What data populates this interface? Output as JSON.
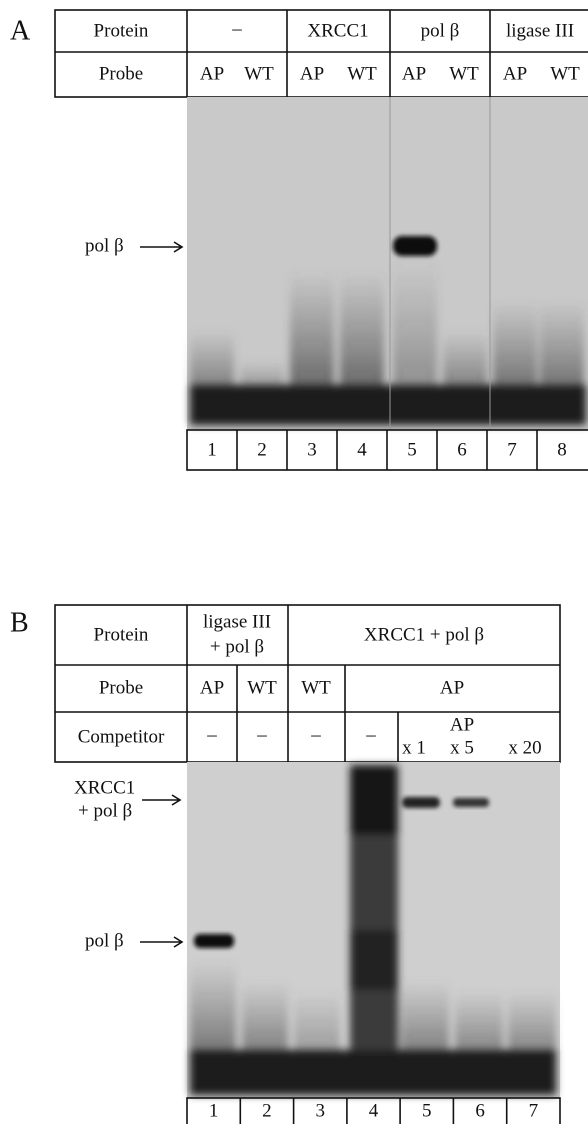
{
  "panel_a": {
    "label": "A",
    "protein_row": [
      "Protein",
      "–",
      "XRCC1",
      "pol β",
      "ligase III"
    ],
    "probe_row": [
      "Probe",
      "AP",
      "WT",
      "AP",
      "WT",
      "AP",
      "WT",
      "AP",
      "WT"
    ],
    "band_label": "pol β",
    "lanes": [
      "1",
      "2",
      "3",
      "4",
      "5",
      "6",
      "7",
      "8"
    ]
  },
  "panel_b": {
    "label": "B",
    "protein_row": [
      "Protein",
      [
        "ligase III",
        "+ pol β"
      ],
      "XRCC1 + pol β"
    ],
    "probe_row": [
      "Probe",
      "AP",
      "WT",
      "WT",
      "AP"
    ],
    "competitor_row": [
      "Competitor",
      "–",
      "–",
      "–",
      "–",
      "x 1",
      "AP",
      "x 5",
      "x 20"
    ],
    "band_labels": [
      [
        "XRCC1",
        "+ pol β"
      ],
      "pol β"
    ],
    "lanes": [
      "1",
      "2",
      "3",
      "4",
      "5",
      "6",
      "7"
    ]
  }
}
